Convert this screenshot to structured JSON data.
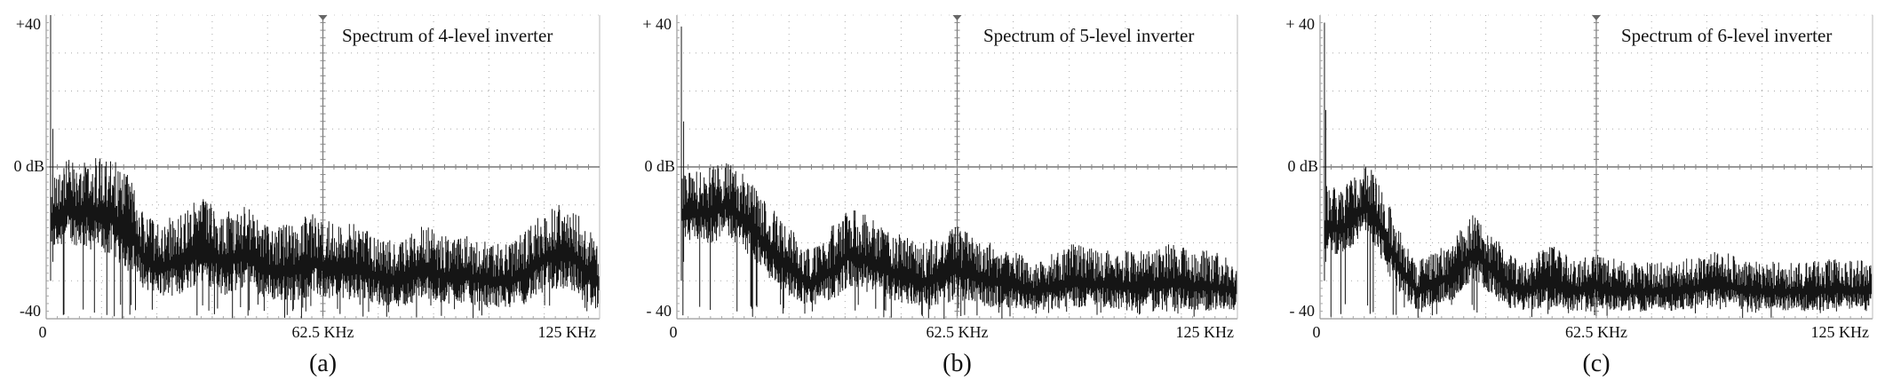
{
  "chart_data": [
    {
      "type": "line",
      "title": "Spectrum of 4-level inverter",
      "caption": "(a)",
      "xlabel": "",
      "ylabel": "",
      "xlim": [
        0,
        125
      ],
      "ylim": [
        -40,
        40
      ],
      "x_unit": "KHz",
      "y_unit": "dB",
      "y_tick_labels": {
        "top": "+40",
        "mid": "0 dB",
        "bottom": "-40"
      },
      "x_tick_labels": {
        "start": "0",
        "mid": "62.5 KHz",
        "end": "125 KHz"
      },
      "grid": true,
      "fundamental": {
        "x": 1,
        "y": 40
      },
      "near_fundamental_peak": {
        "x": 1.5,
        "y": 10
      },
      "envelope": {
        "x": [
          2,
          5,
          10,
          15,
          19,
          22,
          25,
          30,
          35,
          40,
          45,
          50,
          55,
          60,
          65,
          70,
          75,
          80,
          85,
          90,
          95,
          100,
          105,
          110,
          113,
          118,
          122,
          125
        ],
        "upper": [
          0,
          2,
          3,
          2,
          -2,
          -12,
          -15,
          -12,
          -8,
          -12,
          -10,
          -15,
          -15,
          -12,
          -15,
          -15,
          -18,
          -20,
          -15,
          -18,
          -18,
          -20,
          -20,
          -14,
          -10,
          -8,
          -15,
          -20
        ],
        "lower": [
          -22,
          -20,
          -22,
          -24,
          -28,
          -32,
          -34,
          -34,
          -30,
          -34,
          -32,
          -35,
          -36,
          -34,
          -35,
          -35,
          -36,
          -37,
          -35,
          -36,
          -36,
          -37,
          -37,
          -35,
          -33,
          -32,
          -36,
          -38
        ]
      }
    },
    {
      "type": "line",
      "title": "Spectrum of 5-level inverter",
      "caption": "(b)",
      "xlabel": "",
      "ylabel": "",
      "xlim": [
        0,
        125
      ],
      "ylim": [
        -40,
        40
      ],
      "x_unit": "KHz",
      "y_unit": "dB",
      "y_tick_labels": {
        "top": "+ 40",
        "mid": "0 dB",
        "bottom": "- 40"
      },
      "x_tick_labels": {
        "start": "0",
        "mid": "62.5 KHz",
        "end": "125 KHz"
      },
      "grid": true,
      "fundamental": {
        "x": 1,
        "y": 37
      },
      "near_fundamental_peak": {
        "x": 1.5,
        "y": 12
      },
      "envelope": {
        "x": [
          2,
          5,
          8,
          11,
          15,
          18,
          21,
          25,
          30,
          35,
          38,
          42,
          45,
          50,
          55,
          60,
          62,
          66,
          70,
          75,
          80,
          88,
          95,
          100,
          105,
          110,
          115,
          120,
          125
        ],
        "upper": [
          -2,
          0,
          0,
          2,
          -2,
          -6,
          -10,
          -15,
          -22,
          -15,
          -10,
          -12,
          -15,
          -18,
          -20,
          -17,
          -15,
          -18,
          -20,
          -22,
          -25,
          -20,
          -22,
          -22,
          -22,
          -20,
          -22,
          -22,
          -25
        ],
        "lower": [
          -20,
          -20,
          -20,
          -18,
          -22,
          -26,
          -30,
          -34,
          -37,
          -35,
          -32,
          -33,
          -34,
          -36,
          -37,
          -36,
          -35,
          -36,
          -37,
          -37,
          -38,
          -37,
          -37,
          -38,
          -37,
          -37,
          -38,
          -38,
          -38
        ]
      }
    },
    {
      "type": "line",
      "title": "Spectrum of 6-level inverter",
      "caption": "(c)",
      "xlabel": "",
      "ylabel": "",
      "xlim": [
        0,
        125
      ],
      "ylim": [
        -40,
        40
      ],
      "x_unit": "KHz",
      "y_unit": "dB",
      "y_tick_labels": {
        "top": "+ 40",
        "mid": "0 dB",
        "bottom": "- 40"
      },
      "x_tick_labels": {
        "start": "0",
        "mid": "62.5 KHz",
        "end": "125 KHz"
      },
      "grid": true,
      "fundamental": {
        "x": 1,
        "y": 38
      },
      "near_fundamental_peak": {
        "x": 1.3,
        "y": 15
      },
      "envelope": {
        "x": [
          2,
          5,
          8,
          10,
          12,
          14,
          16,
          18,
          22,
          26,
          30,
          33,
          35,
          38,
          42,
          46,
          52,
          58,
          62,
          66,
          70,
          80,
          90,
          100,
          110,
          118,
          125
        ],
        "upper": [
          -5,
          -6,
          -2,
          0,
          0,
          -5,
          -10,
          -15,
          -25,
          -22,
          -20,
          -14,
          -12,
          -16,
          -22,
          -25,
          -20,
          -25,
          -22,
          -24,
          -25,
          -25,
          -22,
          -25,
          -25,
          -24,
          -25
        ],
        "lower": [
          -22,
          -24,
          -20,
          -18,
          -20,
          -25,
          -30,
          -34,
          -38,
          -36,
          -35,
          -32,
          -30,
          -33,
          -37,
          -38,
          -37,
          -38,
          -37,
          -38,
          -38,
          -38,
          -37,
          -38,
          -38,
          -38,
          -38
        ]
      }
    }
  ]
}
